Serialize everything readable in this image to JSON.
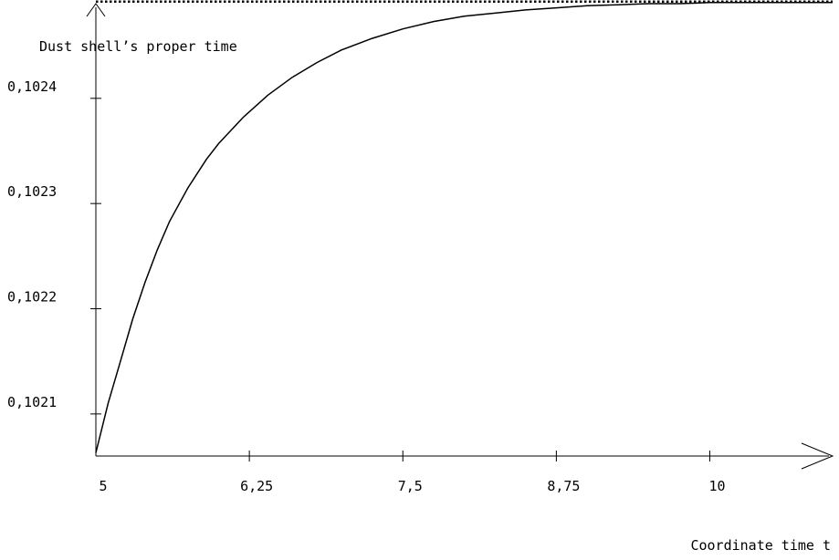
{
  "chart_data": {
    "type": "line",
    "ylabel": "Dust shell’s proper time",
    "xlabel": "Coordinate time t",
    "xlim": [
      5,
      11.0
    ],
    "ylim": [
      0.10206,
      0.10249
    ],
    "x_ticks": [
      {
        "value": 5,
        "label": "5"
      },
      {
        "value": 6.25,
        "label": "6,25"
      },
      {
        "value": 7.5,
        "label": "7,5"
      },
      {
        "value": 8.75,
        "label": "8,75"
      },
      {
        "value": 10,
        "label": "10"
      }
    ],
    "y_ticks": [
      {
        "value": 0.1021,
        "label": "0,1021"
      },
      {
        "value": 0.1022,
        "label": "0,1022"
      },
      {
        "value": 0.1023,
        "label": "0,1023"
      },
      {
        "value": 0.1024,
        "label": "0,1024"
      }
    ],
    "series": [
      {
        "style": "solid",
        "color": "#000000",
        "x": [
          5.0,
          5.1,
          5.2,
          5.3,
          5.4,
          5.5,
          5.6,
          5.75,
          5.9,
          6.0,
          6.2,
          6.4,
          6.6,
          6.8,
          7.0,
          7.25,
          7.5,
          7.75,
          8.0,
          8.25,
          8.5,
          8.75,
          9.0,
          9.25,
          9.5,
          9.75,
          10.0,
          10.25,
          10.5,
          10.75,
          11.0
        ],
        "y": [
          0.102063,
          0.10211,
          0.10215,
          0.10219,
          0.102225,
          0.102256,
          0.102283,
          0.102315,
          0.102342,
          0.102357,
          0.102382,
          0.102403,
          0.10242,
          0.102434,
          0.102446,
          0.102457,
          0.102466,
          0.102473,
          0.102478,
          0.102481,
          0.102484,
          0.102486,
          0.102488,
          0.102489,
          0.10249,
          0.10249,
          0.102491,
          0.102491,
          0.102491,
          0.102491,
          0.102491
        ]
      },
      {
        "style": "dotted",
        "color": "#000000",
        "x": [
          5.0,
          11.0
        ],
        "y": [
          0.102492,
          0.102492
        ]
      }
    ],
    "grid": false
  }
}
